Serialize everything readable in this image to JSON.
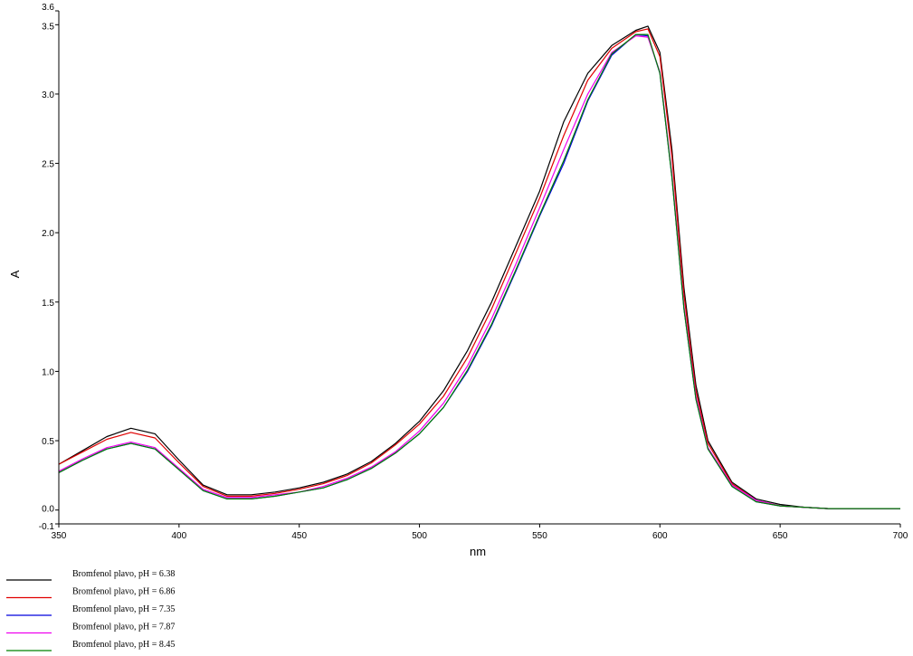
{
  "chart_data": {
    "type": "line",
    "xlabel": "nm",
    "ylabel": "A",
    "xlim": [
      350,
      700
    ],
    "ylim": [
      -0.1,
      3.6
    ],
    "xticks": [
      350,
      400,
      450,
      500,
      550,
      600,
      650,
      700
    ],
    "yticks": [
      -0.1,
      0.0,
      0.5,
      1.0,
      1.5,
      2.0,
      2.5,
      3.0,
      3.5,
      3.6
    ],
    "ytick_labels": [
      "-0.1",
      "0.0",
      "0.5",
      "1.0",
      "1.5",
      "2.0",
      "2.5",
      "3.0",
      "3.5",
      "3.6"
    ],
    "grid": false,
    "legend_position": "bottom-left",
    "x": [
      350,
      360,
      370,
      380,
      390,
      400,
      410,
      420,
      430,
      440,
      450,
      460,
      470,
      480,
      490,
      500,
      510,
      520,
      530,
      540,
      550,
      560,
      570,
      580,
      590,
      595,
      600,
      605,
      610,
      615,
      620,
      630,
      640,
      650,
      660,
      670,
      680,
      690,
      700
    ],
    "series": [
      {
        "name": "Bromfenol plavo, pH = 6.38",
        "color": "#000000",
        "values": [
          0.33,
          0.43,
          0.53,
          0.59,
          0.55,
          0.36,
          0.18,
          0.11,
          0.11,
          0.13,
          0.16,
          0.2,
          0.26,
          0.35,
          0.48,
          0.64,
          0.86,
          1.15,
          1.5,
          1.9,
          2.3,
          2.8,
          3.15,
          3.35,
          3.46,
          3.49,
          3.3,
          2.6,
          1.6,
          0.9,
          0.5,
          0.2,
          0.08,
          0.04,
          0.02,
          0.01,
          0.01,
          0.01,
          0.01
        ]
      },
      {
        "name": "Bromfenol plavo, pH = 6.86",
        "color": "#e00000",
        "values": [
          0.33,
          0.42,
          0.51,
          0.56,
          0.52,
          0.34,
          0.17,
          0.1,
          0.1,
          0.12,
          0.15,
          0.19,
          0.25,
          0.34,
          0.47,
          0.62,
          0.82,
          1.1,
          1.45,
          1.85,
          2.25,
          2.7,
          3.1,
          3.33,
          3.45,
          3.47,
          3.27,
          2.55,
          1.55,
          0.86,
          0.48,
          0.19,
          0.07,
          0.03,
          0.02,
          0.01,
          0.01,
          0.01,
          0.01
        ]
      },
      {
        "name": "Bromfenol plavo, pH = 7.35",
        "color": "#0000dd",
        "values": [
          0.27,
          0.36,
          0.44,
          0.48,
          0.44,
          0.29,
          0.14,
          0.08,
          0.08,
          0.1,
          0.13,
          0.16,
          0.22,
          0.3,
          0.41,
          0.55,
          0.74,
          1.0,
          1.33,
          1.72,
          2.12,
          2.5,
          2.95,
          3.28,
          3.43,
          3.42,
          3.15,
          2.4,
          1.45,
          0.8,
          0.44,
          0.17,
          0.06,
          0.03,
          0.02,
          0.01,
          0.01,
          0.01,
          0.01
        ]
      },
      {
        "name": "Bromfenol plavo, pH = 7.87",
        "color": "#ee00ee",
        "values": [
          0.28,
          0.37,
          0.45,
          0.49,
          0.45,
          0.3,
          0.15,
          0.09,
          0.09,
          0.11,
          0.13,
          0.17,
          0.23,
          0.31,
          0.42,
          0.57,
          0.77,
          1.04,
          1.38,
          1.77,
          2.18,
          2.6,
          3.0,
          3.3,
          3.42,
          3.41,
          3.16,
          2.42,
          1.47,
          0.82,
          0.45,
          0.18,
          0.07,
          0.03,
          0.02,
          0.01,
          0.01,
          0.01,
          0.01
        ]
      },
      {
        "name": "Bromfenol plavo, pH = 8.45",
        "color": "#008000",
        "values": [
          0.27,
          0.36,
          0.44,
          0.48,
          0.44,
          0.29,
          0.14,
          0.08,
          0.08,
          0.1,
          0.13,
          0.16,
          0.22,
          0.3,
          0.41,
          0.55,
          0.74,
          1.01,
          1.34,
          1.73,
          2.13,
          2.52,
          2.96,
          3.29,
          3.43,
          3.43,
          3.15,
          2.4,
          1.45,
          0.8,
          0.44,
          0.17,
          0.06,
          0.03,
          0.02,
          0.01,
          0.01,
          0.01,
          0.01
        ]
      }
    ]
  }
}
